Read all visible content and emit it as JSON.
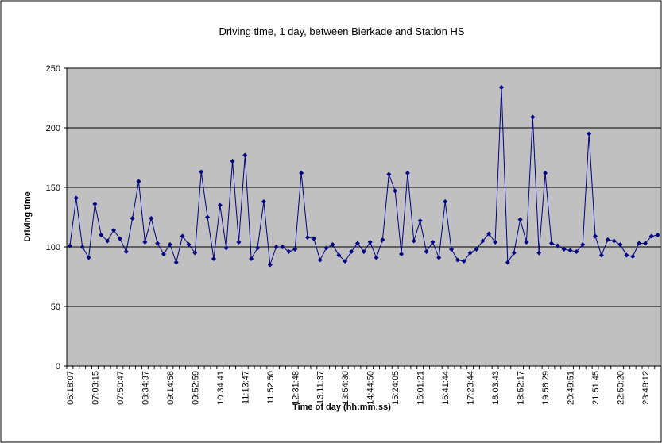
{
  "chart_data": {
    "type": "line",
    "title": "Driving time, 1 day, between Bierkade and Station HS",
    "x_label": "Time of day (hh:mm:ss)",
    "y_label": "Driving time",
    "categories": [
      "06:18:07",
      null,
      null,
      null,
      "07:03:15",
      null,
      null,
      null,
      "07:50:47",
      null,
      null,
      null,
      "08:34:37",
      null,
      null,
      null,
      "09:14:58",
      null,
      null,
      null,
      "09:52:59",
      null,
      null,
      null,
      "10:34:41",
      null,
      null,
      null,
      "11:13:47",
      null,
      null,
      null,
      "11:52:50",
      null,
      null,
      null,
      "12:31:48",
      null,
      null,
      null,
      "13:11:37",
      null,
      null,
      null,
      "13:54:30",
      null,
      null,
      null,
      "14:44:50",
      null,
      null,
      null,
      "15:24:05",
      null,
      null,
      null,
      "16:01:21",
      null,
      null,
      null,
      "16:41:44",
      null,
      null,
      null,
      "17:23:44",
      null,
      null,
      null,
      "18:03:43",
      null,
      null,
      null,
      "18:52:17",
      null,
      null,
      null,
      "19:56:29",
      null,
      null,
      null,
      "20:49:51",
      null,
      null,
      null,
      "21:51:45",
      null,
      null,
      null,
      "22:50:20",
      null,
      null,
      null,
      "23:48:12",
      null,
      null
    ],
    "series": [
      {
        "color": "#000080",
        "values": [
          101,
          141,
          100,
          91,
          136,
          110,
          105,
          114,
          107,
          96,
          124,
          155,
          104,
          124,
          103,
          94,
          102,
          87,
          109,
          102,
          95,
          163,
          125,
          90,
          135,
          99,
          172,
          104,
          177,
          90,
          99,
          138,
          85,
          100,
          100,
          96,
          98,
          162,
          108,
          107,
          89,
          99,
          102,
          93,
          88,
          96,
          103,
          96,
          104,
          91,
          106,
          161,
          147,
          94,
          162,
          105,
          122,
          96,
          104,
          91,
          138,
          98,
          89,
          88,
          95,
          98,
          105,
          111,
          104,
          234,
          87,
          95,
          123,
          104,
          209,
          95,
          162,
          103,
          101,
          98,
          97,
          96,
          102,
          195,
          109,
          93,
          106,
          105,
          102,
          93,
          92,
          103,
          103,
          109,
          110
        ]
      }
    ],
    "ylim": [
      0,
      250
    ],
    "yticks": [
      0,
      50,
      100,
      150,
      200,
      250
    ],
    "grid": true,
    "plot_background": "#c0c0c0"
  }
}
